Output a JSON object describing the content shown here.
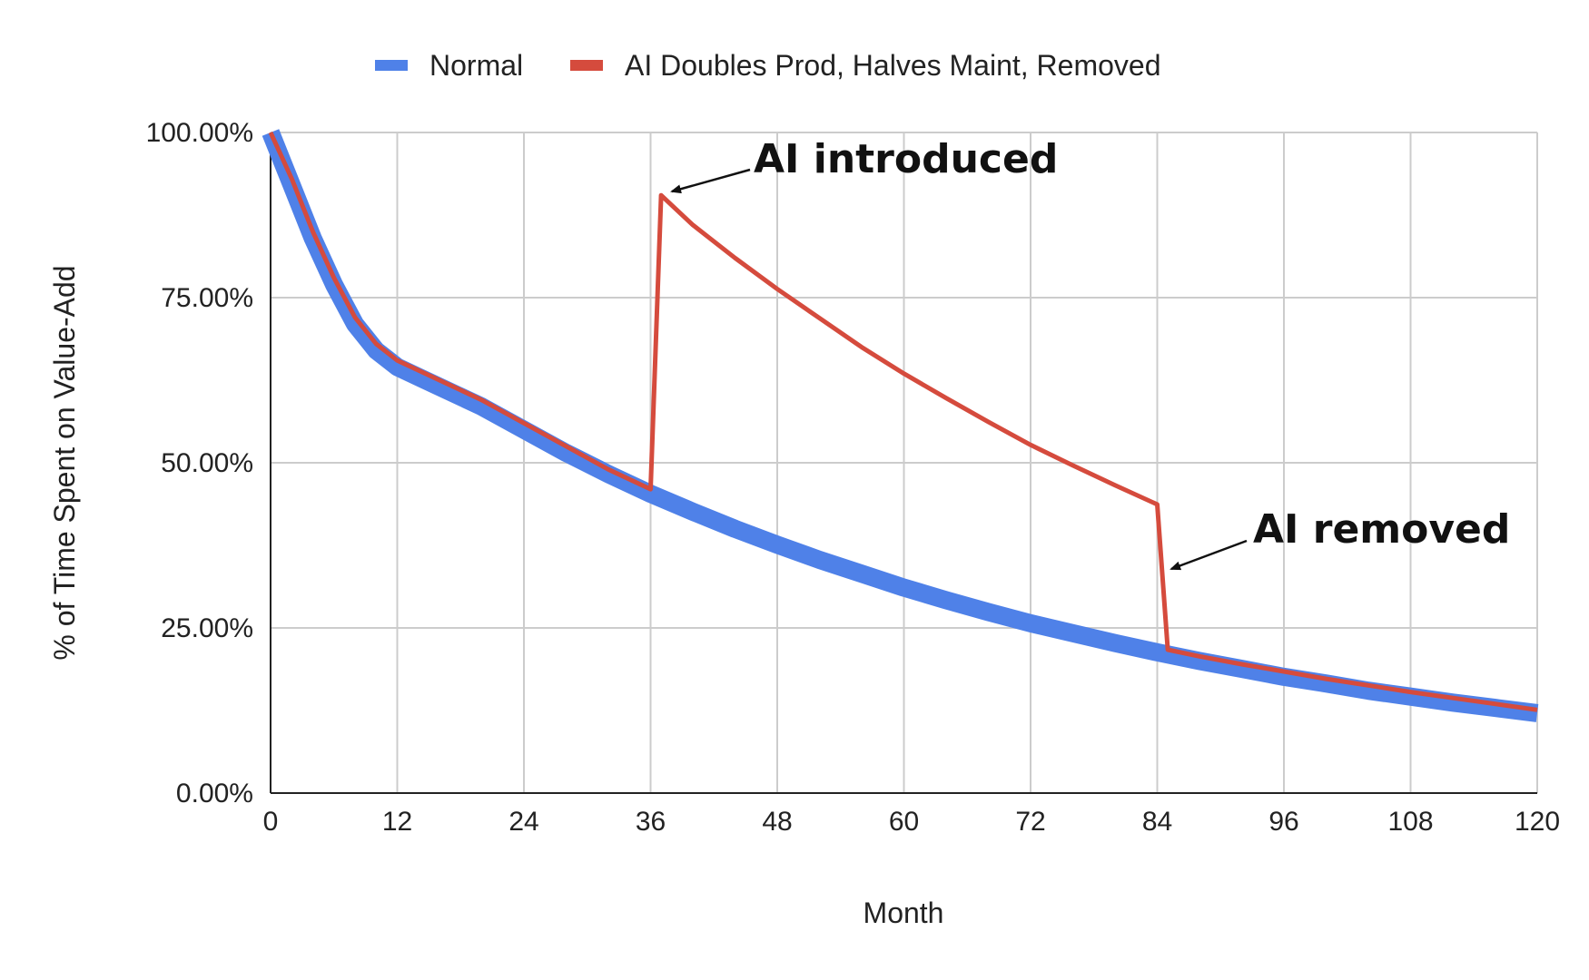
{
  "chart_data": {
    "type": "line",
    "title": "",
    "xlabel": "Month",
    "ylabel": "% of Time Spent on Value-Add",
    "xlim": [
      0,
      120
    ],
    "ylim": [
      0,
      100
    ],
    "x_ticks": [
      0,
      12,
      24,
      36,
      48,
      60,
      72,
      84,
      96,
      108,
      120
    ],
    "x_tick_labels": [
      "0",
      "12",
      "24",
      "36",
      "48",
      "60",
      "72",
      "84",
      "96",
      "108",
      "120"
    ],
    "y_ticks": [
      0,
      25,
      50,
      75,
      100
    ],
    "y_tick_labels": [
      "0.00%",
      "25.00%",
      "50.00%",
      "75.00%",
      "100.00%"
    ],
    "grid": true,
    "legend_position": "top",
    "series": [
      {
        "name": "Normal",
        "color": "#4f81e8",
        "x": [
          0,
          2,
          4,
          6,
          8,
          10,
          12,
          14,
          16,
          18,
          20,
          24,
          28,
          32,
          36,
          40,
          44,
          48,
          52,
          56,
          60,
          64,
          68,
          72,
          76,
          80,
          84,
          88,
          92,
          96,
          100,
          104,
          108,
          112,
          116,
          120
        ],
        "y": [
          100,
          92,
          84,
          77,
          71,
          67,
          64.5,
          63,
          61.5,
          60,
          58.5,
          55,
          51.5,
          48.3,
          45.3,
          42.6,
          40,
          37.6,
          35.3,
          33.2,
          31.1,
          29.2,
          27.4,
          25.7,
          24.2,
          22.7,
          21.3,
          20,
          18.8,
          17.6,
          16.6,
          15.5,
          14.6,
          13.7,
          12.9,
          12.1
        ]
      },
      {
        "name": "AI Doubles Prod, Halves Maint, Removed",
        "color": "#d54b3d",
        "x": [
          0,
          2,
          4,
          6,
          8,
          10,
          12,
          14,
          16,
          18,
          20,
          24,
          28,
          32,
          36,
          37,
          40,
          44,
          48,
          52,
          56,
          60,
          64,
          68,
          72,
          76,
          80,
          84,
          85,
          88,
          92,
          96,
          100,
          104,
          108,
          112,
          116,
          120
        ],
        "y": [
          100,
          93,
          85,
          78,
          72,
          68,
          65.5,
          64,
          62.5,
          61,
          59.5,
          56,
          52.5,
          49,
          46,
          90.5,
          86,
          81,
          76.3,
          71.9,
          67.5,
          63.5,
          59.8,
          56.2,
          52.7,
          49.6,
          46.6,
          43.7,
          21.7,
          20.7,
          19.5,
          18.4,
          17.3,
          16.3,
          15.3,
          14.4,
          13.5,
          12.6
        ]
      }
    ],
    "annotations": [
      {
        "text": "AI introduced",
        "x": 37,
        "y": 90.5
      },
      {
        "text": "AI removed",
        "x": 85,
        "y": 34
      }
    ]
  }
}
